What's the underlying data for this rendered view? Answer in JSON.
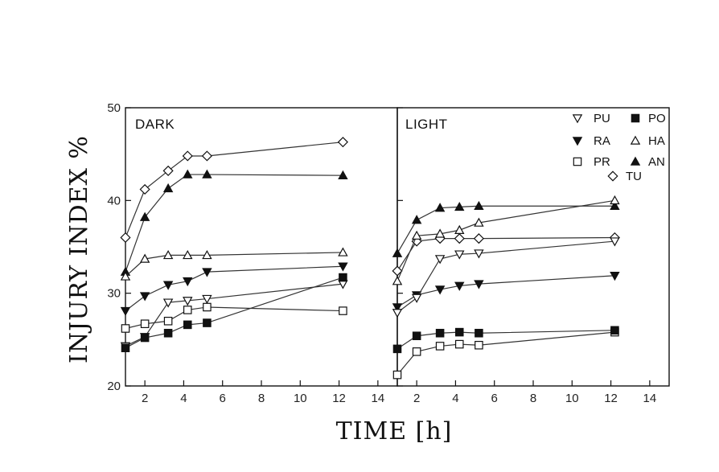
{
  "chart_data": {
    "type": "line",
    "xlabel": "TIME [h]",
    "ylabel": "INJURY INDEX %",
    "ylim": [
      20,
      50
    ],
    "y_ticks": [
      20,
      30,
      40,
      50
    ],
    "xlim": [
      1,
      15
    ],
    "x_ticks": [
      2,
      4,
      6,
      8,
      10,
      12,
      14
    ],
    "grid": false,
    "legend_position": "top-right of LIGHT panel",
    "legend": [
      {
        "key": "PU",
        "marker": "triangle-down-open"
      },
      {
        "key": "PO",
        "marker": "square-filled"
      },
      {
        "key": "RA",
        "marker": "triangle-down-filled"
      },
      {
        "key": "HA",
        "marker": "triangle-up-open"
      },
      {
        "key": "PR",
        "marker": "square-open"
      },
      {
        "key": "AN",
        "marker": "triangle-up-filled"
      },
      {
        "key": "TU",
        "marker": "diamond-open"
      }
    ],
    "panels": [
      {
        "title": "DARK",
        "series": [
          {
            "name": "TU",
            "x": [
              1,
              2,
              3.2,
              4.2,
              5.2,
              12.2
            ],
            "y": [
              36.0,
              41.2,
              43.2,
              44.8,
              44.8,
              46.3
            ]
          },
          {
            "name": "AN",
            "x": [
              1,
              2,
              3.2,
              4.2,
              5.2,
              12.2
            ],
            "y": [
              32.3,
              38.2,
              41.3,
              42.8,
              42.8,
              42.7
            ]
          },
          {
            "name": "HA",
            "x": [
              1,
              2,
              3.2,
              4.2,
              5.2,
              12.2
            ],
            "y": [
              31.8,
              33.7,
              34.1,
              34.1,
              34.1,
              34.4
            ]
          },
          {
            "name": "RA",
            "x": [
              1,
              2,
              3.2,
              4.2,
              5.2,
              12.2
            ],
            "y": [
              28.1,
              29.7,
              30.9,
              31.3,
              32.3,
              32.9
            ]
          },
          {
            "name": "PU",
            "x": [
              1,
              2,
              3.2,
              4.2,
              5.2,
              12.2
            ],
            "y": [
              24.3,
              25.3,
              29.0,
              29.2,
              29.4,
              31.0
            ]
          },
          {
            "name": "PR",
            "x": [
              1,
              2,
              3.2,
              4.2,
              5.2,
              12.2
            ],
            "y": [
              26.2,
              26.7,
              27.0,
              28.2,
              28.5,
              28.1
            ]
          },
          {
            "name": "PO",
            "x": [
              1,
              2,
              3.2,
              4.2,
              5.2,
              12.2
            ],
            "y": [
              24.1,
              25.2,
              25.7,
              26.6,
              26.8,
              31.7
            ]
          }
        ]
      },
      {
        "title": "LIGHT",
        "series": [
          {
            "name": "TU",
            "x": [
              1,
              2,
              3.2,
              4.2,
              5.2,
              12.2
            ],
            "y": [
              32.4,
              35.6,
              35.9,
              35.9,
              35.9,
              36.0
            ]
          },
          {
            "name": "AN",
            "x": [
              1,
              2,
              3.2,
              4.2,
              5.2,
              12.2
            ],
            "y": [
              34.3,
              37.9,
              39.2,
              39.3,
              39.4,
              39.4
            ]
          },
          {
            "name": "HA",
            "x": [
              1,
              2,
              3.2,
              4.2,
              5.2,
              12.2
            ],
            "y": [
              31.3,
              36.2,
              36.4,
              36.8,
              37.6,
              40.0
            ]
          },
          {
            "name": "RA",
            "x": [
              1,
              2,
              3.2,
              4.2,
              5.2,
              12.2
            ],
            "y": [
              28.5,
              29.8,
              30.4,
              30.8,
              31.0,
              31.9
            ]
          },
          {
            "name": "PU",
            "x": [
              1,
              2,
              3.2,
              4.2,
              5.2,
              12.2
            ],
            "y": [
              27.9,
              29.5,
              33.7,
              34.2,
              34.3,
              35.6
            ]
          },
          {
            "name": "PR",
            "x": [
              1,
              2,
              3.2,
              4.2,
              5.2,
              12.2
            ],
            "y": [
              21.2,
              23.7,
              24.3,
              24.5,
              24.4,
              25.8
            ]
          },
          {
            "name": "PO",
            "x": [
              1,
              2,
              3.2,
              4.2,
              5.2,
              12.2
            ],
            "y": [
              24.0,
              25.4,
              25.7,
              25.8,
              25.7,
              26.0
            ]
          }
        ]
      }
    ]
  }
}
